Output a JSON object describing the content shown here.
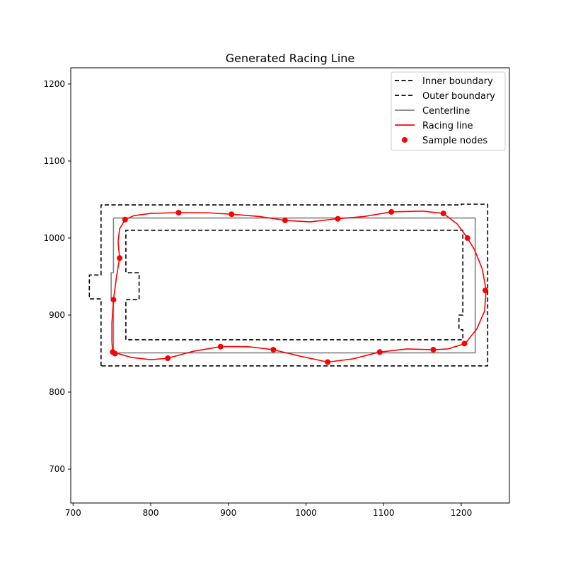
{
  "chart_data": {
    "type": "line",
    "title": "Generated Racing Line",
    "xlabel": "",
    "ylabel": "",
    "xlim": [
      697,
      1262
    ],
    "ylim": [
      656,
      1221
    ],
    "xticks": [
      700,
      800,
      900,
      1000,
      1100,
      1200
    ],
    "yticks": [
      700,
      800,
      900,
      1000,
      1100,
      1200
    ],
    "grid": false,
    "legend_position": "top-right",
    "series": [
      {
        "name": "Inner boundary",
        "kind": "line",
        "color": "#000000",
        "dash": "dashed",
        "points": [
          [
            768,
            868
          ],
          [
            768,
            920
          ],
          [
            785,
            920
          ],
          [
            785,
            955
          ],
          [
            768,
            955
          ],
          [
            768,
            1010
          ],
          [
            1202,
            1010
          ],
          [
            1202,
            900
          ],
          [
            1197,
            900
          ],
          [
            1197,
            881
          ],
          [
            1202,
            881
          ],
          [
            1202,
            868
          ],
          [
            768,
            868
          ]
        ]
      },
      {
        "name": "Outer boundary",
        "kind": "line",
        "color": "#000000",
        "dash": "dashed",
        "points": [
          [
            736,
            834
          ],
          [
            736,
            921
          ],
          [
            721,
            921
          ],
          [
            721,
            952
          ],
          [
            736,
            952
          ],
          [
            736,
            1043
          ],
          [
            1200,
            1043
          ],
          [
            1200,
            1044
          ],
          [
            1234,
            1044
          ],
          [
            1234,
            834
          ],
          [
            736,
            834
          ]
        ]
      },
      {
        "name": "Centerline",
        "kind": "line",
        "color": "#808080",
        "dash": "solid",
        "points": [
          [
            752,
            851
          ],
          [
            752,
            921
          ],
          [
            749,
            921
          ],
          [
            749,
            955
          ],
          [
            752,
            955
          ],
          [
            752,
            1026
          ],
          [
            1218,
            1026
          ],
          [
            1218,
            851
          ],
          [
            752,
            851
          ]
        ]
      },
      {
        "name": "Racing line",
        "kind": "line",
        "color": "#ff0000",
        "dash": "solid",
        "points": [
          [
            751,
            852
          ],
          [
            775,
            845
          ],
          [
            800,
            842
          ],
          [
            822,
            844
          ],
          [
            855,
            853
          ],
          [
            890,
            859
          ],
          [
            925,
            859
          ],
          [
            958,
            855
          ],
          [
            995,
            846
          ],
          [
            1028,
            839
          ],
          [
            1060,
            843
          ],
          [
            1095,
            852
          ],
          [
            1130,
            856
          ],
          [
            1164,
            855
          ],
          [
            1183,
            856
          ],
          [
            1205,
            863
          ],
          [
            1220,
            882
          ],
          [
            1230,
            905
          ],
          [
            1232,
            932
          ],
          [
            1227,
            960
          ],
          [
            1217,
            985
          ],
          [
            1208,
            1000
          ],
          [
            1195,
            1018
          ],
          [
            1177,
            1032
          ],
          [
            1150,
            1035
          ],
          [
            1110,
            1034
          ],
          [
            1075,
            1028
          ],
          [
            1040,
            1025
          ],
          [
            1005,
            1021
          ],
          [
            973,
            1023
          ],
          [
            940,
            1028
          ],
          [
            904,
            1031
          ],
          [
            870,
            1033
          ],
          [
            836,
            1033
          ],
          [
            800,
            1032
          ],
          [
            778,
            1029
          ],
          [
            767,
            1024
          ],
          [
            760,
            1012
          ],
          [
            758,
            995
          ],
          [
            760,
            974
          ],
          [
            756,
            950
          ],
          [
            752,
            920
          ],
          [
            750,
            890
          ],
          [
            750,
            865
          ],
          [
            751,
            852
          ]
        ]
      },
      {
        "name": "Sample nodes",
        "kind": "scatter",
        "color": "#ff0000",
        "points": [
          [
            751,
            852
          ],
          [
            754,
            850
          ],
          [
            822,
            844
          ],
          [
            890,
            859
          ],
          [
            958,
            855
          ],
          [
            1028,
            839
          ],
          [
            1095,
            852
          ],
          [
            1164,
            855
          ],
          [
            1204,
            863
          ],
          [
            1231,
            932
          ],
          [
            1208,
            1000
          ],
          [
            1177,
            1032
          ],
          [
            1110,
            1034
          ],
          [
            1041,
            1025
          ],
          [
            973,
            1023
          ],
          [
            904,
            1031
          ],
          [
            836,
            1033
          ],
          [
            767,
            1024
          ],
          [
            760,
            974
          ],
          [
            752,
            920
          ]
        ]
      }
    ]
  }
}
